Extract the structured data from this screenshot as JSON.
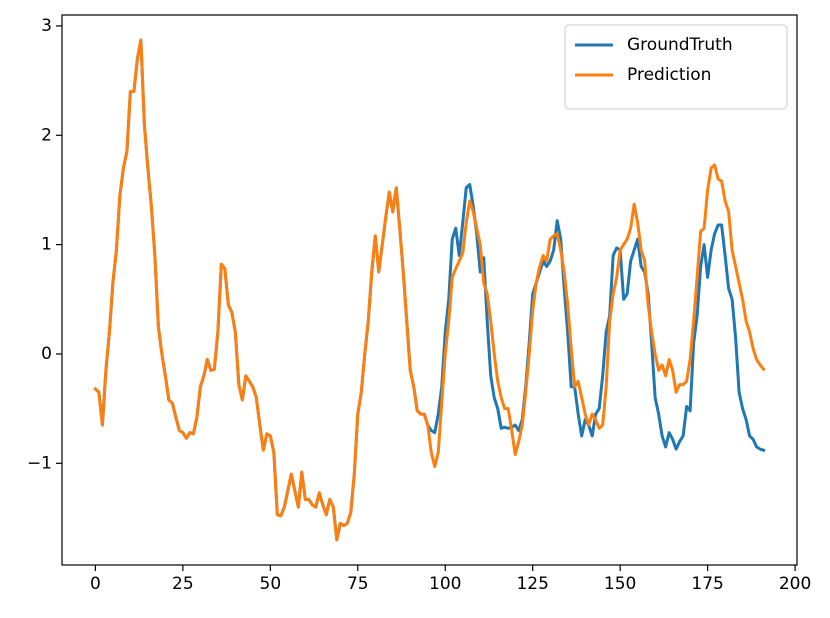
{
  "chart_data": {
    "type": "line",
    "x": [
      0,
      1,
      2,
      3,
      4,
      5,
      6,
      7,
      8,
      9,
      10,
      11,
      12,
      13,
      14,
      15,
      16,
      17,
      18,
      19,
      20,
      21,
      22,
      23,
      24,
      25,
      26,
      27,
      28,
      29,
      30,
      31,
      32,
      33,
      34,
      35,
      36,
      37,
      38,
      39,
      40,
      41,
      42,
      43,
      44,
      45,
      46,
      47,
      48,
      49,
      50,
      51,
      52,
      53,
      54,
      55,
      56,
      57,
      58,
      59,
      60,
      61,
      62,
      63,
      64,
      65,
      66,
      67,
      68,
      69,
      70,
      71,
      72,
      73,
      74,
      75,
      76,
      77,
      78,
      79,
      80,
      81,
      82,
      83,
      84,
      85,
      86,
      87,
      88,
      89,
      90,
      91,
      92,
      93,
      94,
      95,
      96,
      97,
      98,
      99,
      100,
      101,
      102,
      103,
      104,
      105,
      106,
      107,
      108,
      109,
      110,
      111,
      112,
      113,
      114,
      115,
      116,
      117,
      118,
      119,
      120,
      121,
      122,
      123,
      124,
      125,
      126,
      127,
      128,
      129,
      130,
      131,
      132,
      133,
      134,
      135,
      136,
      137,
      138,
      139,
      140,
      141,
      142,
      143,
      144,
      145,
      146,
      147,
      148,
      149,
      150,
      151,
      152,
      153,
      154,
      155,
      156,
      157,
      158,
      159,
      160,
      161,
      162,
      163,
      164,
      165,
      166,
      167,
      168,
      169,
      170,
      171,
      172,
      173,
      174,
      175,
      176,
      177,
      178,
      179,
      180,
      181,
      182,
      183,
      184,
      185,
      186,
      187,
      188,
      189,
      190,
      191
    ],
    "series": [
      {
        "name": "GroundTruth",
        "color": "#1f77b4",
        "values": [
          -0.32,
          -0.35,
          -0.65,
          -0.15,
          0.2,
          0.65,
          0.95,
          1.45,
          1.7,
          1.85,
          2.4,
          2.4,
          2.7,
          2.87,
          2.1,
          1.7,
          1.35,
          0.9,
          0.25,
          0.0,
          -0.2,
          -0.42,
          -0.45,
          -0.58,
          -0.7,
          -0.72,
          -0.77,
          -0.72,
          -0.73,
          -0.58,
          -0.3,
          -0.2,
          -0.05,
          -0.15,
          -0.14,
          0.2,
          0.82,
          0.78,
          0.45,
          0.38,
          0.2,
          -0.28,
          -0.42,
          -0.2,
          -0.25,
          -0.3,
          -0.4,
          -0.65,
          -0.88,
          -0.73,
          -0.75,
          -0.9,
          -1.47,
          -1.48,
          -1.4,
          -1.25,
          -1.1,
          -1.25,
          -1.4,
          -1.08,
          -1.33,
          -1.33,
          -1.38,
          -1.4,
          -1.27,
          -1.38,
          -1.47,
          -1.33,
          -1.4,
          -1.7,
          -1.55,
          -1.57,
          -1.55,
          -1.45,
          -1.1,
          -0.55,
          -0.35,
          0.0,
          0.3,
          0.75,
          1.08,
          0.75,
          1.0,
          1.25,
          1.48,
          1.3,
          1.52,
          1.15,
          0.75,
          0.3,
          -0.15,
          -0.3,
          -0.52,
          -0.55,
          -0.55,
          -0.65,
          -0.7,
          -0.72,
          -0.55,
          -0.3,
          0.2,
          0.5,
          1.05,
          1.15,
          0.9,
          1.2,
          1.52,
          1.55,
          1.35,
          1.1,
          0.75,
          0.88,
          0.3,
          -0.2,
          -0.4,
          -0.5,
          -0.68,
          -0.67,
          -0.68,
          -0.67,
          -0.65,
          -0.7,
          -0.6,
          -0.3,
          0.1,
          0.55,
          0.65,
          0.75,
          0.85,
          0.8,
          0.85,
          0.95,
          1.22,
          1.05,
          0.6,
          0.2,
          -0.3,
          -0.3,
          -0.55,
          -0.75,
          -0.6,
          -0.65,
          -0.75,
          -0.55,
          -0.5,
          -0.2,
          0.2,
          0.35,
          0.9,
          0.97,
          0.95,
          0.5,
          0.55,
          0.85,
          0.95,
          1.05,
          0.8,
          0.75,
          0.55,
          0.1,
          -0.4,
          -0.55,
          -0.75,
          -0.85,
          -0.72,
          -0.78,
          -0.87,
          -0.8,
          -0.75,
          -0.48,
          -0.52,
          0.1,
          0.35,
          0.8,
          1.0,
          0.7,
          0.95,
          1.1,
          1.18,
          1.18,
          0.9,
          0.6,
          0.5,
          0.15,
          -0.35,
          -0.5,
          -0.6,
          -0.75,
          -0.78,
          -0.85,
          -0.87,
          -0.88
        ]
      },
      {
        "name": "Prediction",
        "color": "#ff7f0e",
        "values": [
          -0.32,
          -0.35,
          -0.65,
          -0.15,
          0.2,
          0.65,
          0.95,
          1.45,
          1.7,
          1.85,
          2.4,
          2.4,
          2.7,
          2.87,
          2.1,
          1.7,
          1.35,
          0.9,
          0.25,
          0.0,
          -0.2,
          -0.42,
          -0.45,
          -0.58,
          -0.7,
          -0.72,
          -0.77,
          -0.72,
          -0.73,
          -0.58,
          -0.3,
          -0.2,
          -0.05,
          -0.15,
          -0.14,
          0.2,
          0.82,
          0.78,
          0.45,
          0.38,
          0.2,
          -0.28,
          -0.42,
          -0.2,
          -0.25,
          -0.3,
          -0.4,
          -0.65,
          -0.88,
          -0.73,
          -0.75,
          -0.9,
          -1.47,
          -1.48,
          -1.4,
          -1.25,
          -1.1,
          -1.25,
          -1.4,
          -1.08,
          -1.33,
          -1.33,
          -1.38,
          -1.4,
          -1.27,
          -1.38,
          -1.47,
          -1.33,
          -1.4,
          -1.7,
          -1.55,
          -1.57,
          -1.55,
          -1.45,
          -1.1,
          -0.55,
          -0.35,
          0.0,
          0.3,
          0.75,
          1.08,
          0.75,
          1.0,
          1.25,
          1.48,
          1.3,
          1.52,
          1.15,
          0.75,
          0.3,
          -0.15,
          -0.3,
          -0.52,
          -0.55,
          -0.55,
          -0.65,
          -0.9,
          -1.03,
          -0.9,
          -0.45,
          0.0,
          0.3,
          0.7,
          0.78,
          0.85,
          0.92,
          1.2,
          1.4,
          1.3,
          1.15,
          1.0,
          0.65,
          0.55,
          0.3,
          0.0,
          -0.25,
          -0.4,
          -0.5,
          -0.5,
          -0.7,
          -0.92,
          -0.8,
          -0.65,
          -0.35,
          0.0,
          0.4,
          0.65,
          0.8,
          0.9,
          0.85,
          1.05,
          1.08,
          1.1,
          0.95,
          0.75,
          0.45,
          0.05,
          -0.3,
          -0.25,
          -0.4,
          -0.55,
          -0.65,
          -0.55,
          -0.6,
          -0.68,
          -0.65,
          -0.3,
          0.3,
          0.55,
          0.7,
          0.95,
          1.0,
          1.05,
          1.15,
          1.37,
          1.2,
          0.95,
          0.85,
          0.45,
          0.2,
          0.0,
          -0.15,
          -0.1,
          -0.2,
          -0.05,
          -0.15,
          -0.35,
          -0.28,
          -0.28,
          -0.25,
          -0.05,
          0.3,
          0.7,
          1.12,
          1.15,
          1.5,
          1.7,
          1.73,
          1.6,
          1.58,
          1.4,
          1.3,
          0.95,
          0.8,
          0.65,
          0.5,
          0.3,
          0.2,
          0.05,
          -0.05,
          -0.1,
          -0.14
        ]
      }
    ],
    "xlim": [
      -9.55,
      200.55
    ],
    "xticks": [
      0,
      25,
      50,
      75,
      100,
      125,
      150,
      175,
      200
    ],
    "ylim": [
      -1.93,
      3.1
    ],
    "yticks": [
      {
        "value": -1,
        "label": "−1"
      },
      0,
      1,
      2,
      3
    ],
    "legend": "upper right"
  }
}
